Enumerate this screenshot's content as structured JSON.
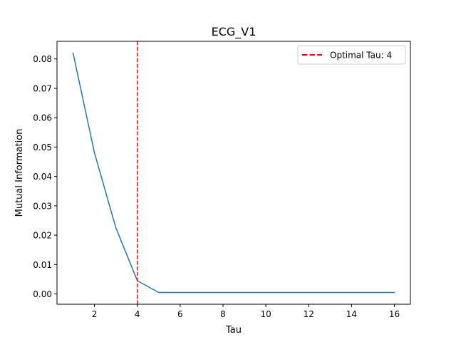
{
  "chart_data": {
    "type": "line",
    "title": "ECG_V1",
    "xlabel": "Tau",
    "ylabel": "Mutual Information",
    "xlim": [
      0.25,
      16.75
    ],
    "ylim": [
      -0.0035,
      0.086
    ],
    "xticks": [
      2,
      4,
      6,
      8,
      10,
      12,
      14,
      16
    ],
    "yticks": [
      0.0,
      0.01,
      0.02,
      0.03,
      0.04,
      0.05,
      0.06,
      0.07,
      0.08
    ],
    "ytick_labels": [
      "0.00",
      "0.01",
      "0.02",
      "0.03",
      "0.04",
      "0.05",
      "0.06",
      "0.07",
      "0.08"
    ],
    "series": [
      {
        "color": "#1f77b4",
        "x": [
          1,
          2,
          3,
          4,
          5,
          6,
          7,
          8,
          9,
          10,
          11,
          12,
          13,
          14,
          15,
          16
        ],
        "y": [
          0.082,
          0.048,
          0.0225,
          0.0045,
          0.0005,
          0.0005,
          0.0005,
          0.0005,
          0.0005,
          0.0005,
          0.0005,
          0.0005,
          0.0005,
          0.0005,
          0.0005,
          0.0005
        ]
      }
    ],
    "vline": {
      "x": 4,
      "color": "#ff0000",
      "style": "dashed",
      "label": "Optimal Tau: 4"
    },
    "legend": {
      "position": "top-right"
    },
    "grid": false
  }
}
